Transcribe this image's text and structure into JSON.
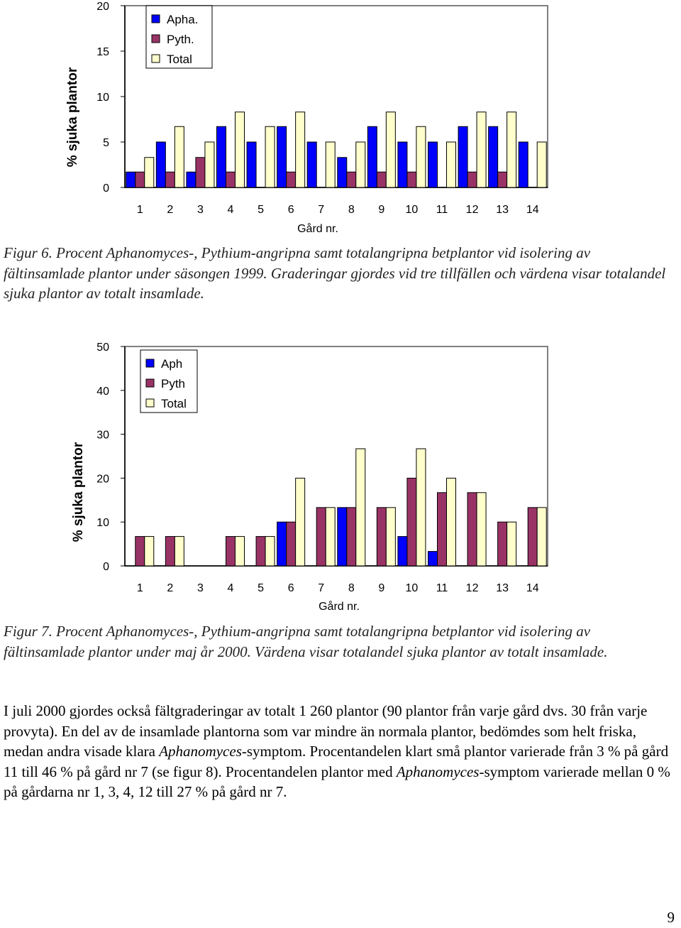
{
  "figures": [
    {
      "caption": "Figur 6. Procent Aphanomyces-, Pythium-angripna samt totalangripna betplantor vid isolering av fältinsamlade plantor under säsongen 1999. Graderingar gjordes vid tre tillfällen och värdena visar totalandel sjuka plantor av totalt insamlade.",
      "chart_data": {
        "type": "bar",
        "xlabel": "Gård nr.",
        "ylabel": "% sjuka plantor",
        "ylim": [
          0,
          20
        ],
        "yticks": [
          0,
          5,
          10,
          15,
          20
        ],
        "grid": false,
        "legend_position": "top-left",
        "categories": [
          "1",
          "2",
          "3",
          "4",
          "5",
          "6",
          "7",
          "8",
          "9",
          "10",
          "11",
          "12",
          "13",
          "14"
        ],
        "series": [
          {
            "name": "Apha.",
            "color": "#0000ff",
            "values": [
              1.7,
              5,
              1.7,
              6.7,
              5,
              6.7,
              5,
              3.3,
              6.7,
              5,
              5,
              6.7,
              6.7,
              5
            ]
          },
          {
            "name": "Pyth.",
            "color": "#993366",
            "values": [
              1.7,
              1.7,
              3.3,
              1.7,
              0,
              1.7,
              0,
              1.7,
              1.7,
              1.7,
              0,
              1.7,
              1.7,
              0
            ]
          },
          {
            "name": "Total",
            "color": "#ffffcc",
            "values": [
              3.3,
              6.7,
              5,
              8.3,
              6.7,
              8.3,
              5,
              5,
              8.3,
              6.7,
              5,
              8.3,
              8.3,
              5
            ]
          }
        ]
      }
    },
    {
      "caption": "Figur 7. Procent Aphanomyces-, Pythium-angripna samt totalangripna betplantor vid isolering av fältinsamlade plantor under maj år 2000. Värdena visar totalandel sjuka plantor av totalt insamlade.",
      "chart_data": {
        "type": "bar",
        "xlabel": "Gård  nr.",
        "ylabel": "% sjuka plantor",
        "ylim": [
          0,
          50
        ],
        "yticks": [
          0,
          10,
          20,
          30,
          40,
          50
        ],
        "grid": false,
        "legend_position": "top-left",
        "categories": [
          "1",
          "2",
          "3",
          "4",
          "5",
          "6",
          "7",
          "8",
          "9",
          "10",
          "11",
          "12",
          "13",
          "14"
        ],
        "series": [
          {
            "name": "Aph",
            "color": "#0000ff",
            "values": [
              0,
              0,
              0,
              0,
              0,
              10,
              0,
              13.3,
              0,
              6.7,
              3.3,
              0,
              0,
              0
            ]
          },
          {
            "name": "Pyth",
            "color": "#993366",
            "values": [
              6.7,
              6.7,
              0,
              6.7,
              6.7,
              10,
              13.3,
              13.3,
              13.3,
              20,
              16.7,
              16.7,
              10,
              13.3
            ]
          },
          {
            "name": "Total",
            "color": "#ffffcc",
            "values": [
              6.7,
              6.7,
              0,
              6.7,
              6.7,
              20,
              13.3,
              26.7,
              13.3,
              26.7,
              20,
              16.7,
              10,
              13.3
            ]
          }
        ]
      }
    }
  ],
  "body": {
    "p1": "I juli 2000 gjordes också fältgraderingar av totalt 1 260 plantor (90 plantor från varje gård dvs. 30 från varje provyta). En del av de insamlade plantorna som var mindre än normala plantor, bedömdes som helt friska, medan andra visade klara ",
    "p1_em1": "Aphanomyces",
    "p1_b": "-symptom. Procentandelen klart små plantor varierade från 3 % på gård 11 till 46 % på gård nr 7 (se figur 8). Procentandelen plantor med ",
    "p1_em2": "Aphanomyces",
    "p1_c": "-symptom varierade mellan 0 % på gårdarna nr 1, 3, 4, 12 till 27 % på gård nr 7."
  },
  "page_number": "9"
}
